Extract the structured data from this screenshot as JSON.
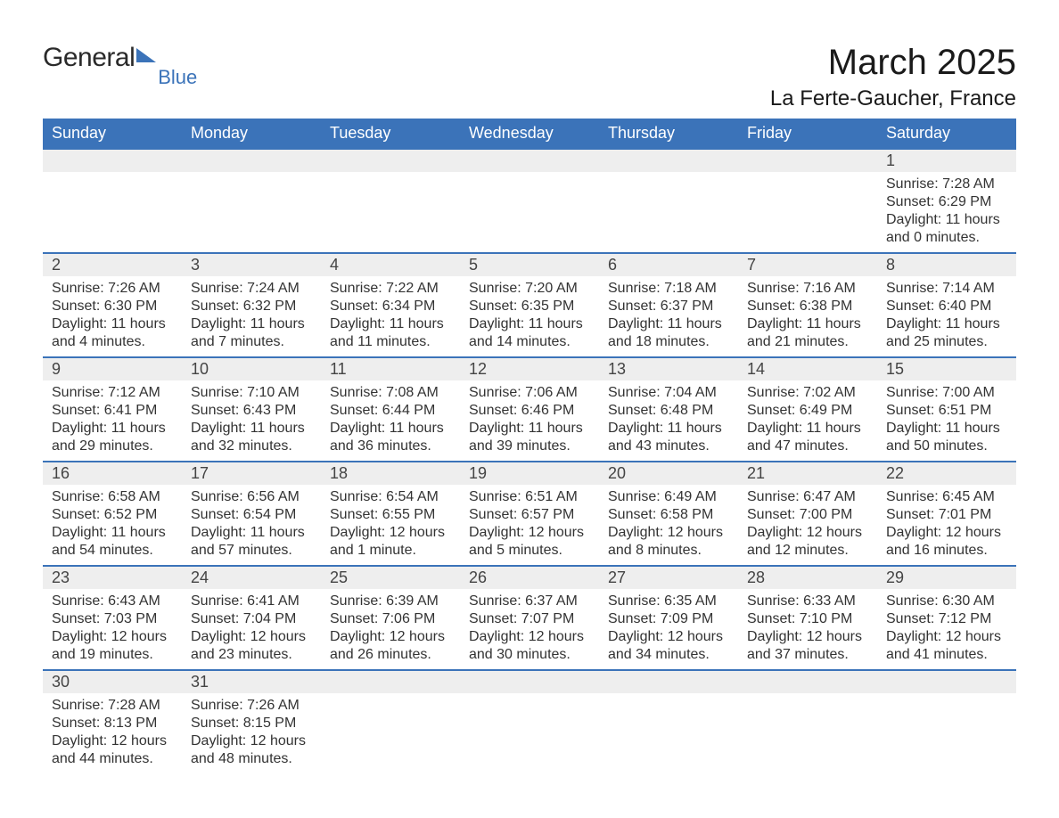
{
  "logo": {
    "word1": "General",
    "word2": "Blue"
  },
  "title": "March 2025",
  "location": "La Ferte-Gaucher, France",
  "colors": {
    "header_bg": "#3b73b9",
    "header_text": "#ffffff",
    "dayrow_bg": "#eeeeee",
    "border": "#3b73b9",
    "body_text": "#333333",
    "page_bg": "#ffffff"
  },
  "typography": {
    "month_title_fontsize": 40,
    "location_fontsize": 24,
    "header_fontsize": 18,
    "daynum_fontsize": 18,
    "detail_fontsize": 16
  },
  "weekdays": [
    "Sunday",
    "Monday",
    "Tuesday",
    "Wednesday",
    "Thursday",
    "Friday",
    "Saturday"
  ],
  "weeks": [
    [
      null,
      null,
      null,
      null,
      null,
      null,
      {
        "day": "1",
        "sunrise": "Sunrise: 7:28 AM",
        "sunset": "Sunset: 6:29 PM",
        "daylight1": "Daylight: 11 hours",
        "daylight2": "and 0 minutes."
      }
    ],
    [
      {
        "day": "2",
        "sunrise": "Sunrise: 7:26 AM",
        "sunset": "Sunset: 6:30 PM",
        "daylight1": "Daylight: 11 hours",
        "daylight2": "and 4 minutes."
      },
      {
        "day": "3",
        "sunrise": "Sunrise: 7:24 AM",
        "sunset": "Sunset: 6:32 PM",
        "daylight1": "Daylight: 11 hours",
        "daylight2": "and 7 minutes."
      },
      {
        "day": "4",
        "sunrise": "Sunrise: 7:22 AM",
        "sunset": "Sunset: 6:34 PM",
        "daylight1": "Daylight: 11 hours",
        "daylight2": "and 11 minutes."
      },
      {
        "day": "5",
        "sunrise": "Sunrise: 7:20 AM",
        "sunset": "Sunset: 6:35 PM",
        "daylight1": "Daylight: 11 hours",
        "daylight2": "and 14 minutes."
      },
      {
        "day": "6",
        "sunrise": "Sunrise: 7:18 AM",
        "sunset": "Sunset: 6:37 PM",
        "daylight1": "Daylight: 11 hours",
        "daylight2": "and 18 minutes."
      },
      {
        "day": "7",
        "sunrise": "Sunrise: 7:16 AM",
        "sunset": "Sunset: 6:38 PM",
        "daylight1": "Daylight: 11 hours",
        "daylight2": "and 21 minutes."
      },
      {
        "day": "8",
        "sunrise": "Sunrise: 7:14 AM",
        "sunset": "Sunset: 6:40 PM",
        "daylight1": "Daylight: 11 hours",
        "daylight2": "and 25 minutes."
      }
    ],
    [
      {
        "day": "9",
        "sunrise": "Sunrise: 7:12 AM",
        "sunset": "Sunset: 6:41 PM",
        "daylight1": "Daylight: 11 hours",
        "daylight2": "and 29 minutes."
      },
      {
        "day": "10",
        "sunrise": "Sunrise: 7:10 AM",
        "sunset": "Sunset: 6:43 PM",
        "daylight1": "Daylight: 11 hours",
        "daylight2": "and 32 minutes."
      },
      {
        "day": "11",
        "sunrise": "Sunrise: 7:08 AM",
        "sunset": "Sunset: 6:44 PM",
        "daylight1": "Daylight: 11 hours",
        "daylight2": "and 36 minutes."
      },
      {
        "day": "12",
        "sunrise": "Sunrise: 7:06 AM",
        "sunset": "Sunset: 6:46 PM",
        "daylight1": "Daylight: 11 hours",
        "daylight2": "and 39 minutes."
      },
      {
        "day": "13",
        "sunrise": "Sunrise: 7:04 AM",
        "sunset": "Sunset: 6:48 PM",
        "daylight1": "Daylight: 11 hours",
        "daylight2": "and 43 minutes."
      },
      {
        "day": "14",
        "sunrise": "Sunrise: 7:02 AM",
        "sunset": "Sunset: 6:49 PM",
        "daylight1": "Daylight: 11 hours",
        "daylight2": "and 47 minutes."
      },
      {
        "day": "15",
        "sunrise": "Sunrise: 7:00 AM",
        "sunset": "Sunset: 6:51 PM",
        "daylight1": "Daylight: 11 hours",
        "daylight2": "and 50 minutes."
      }
    ],
    [
      {
        "day": "16",
        "sunrise": "Sunrise: 6:58 AM",
        "sunset": "Sunset: 6:52 PM",
        "daylight1": "Daylight: 11 hours",
        "daylight2": "and 54 minutes."
      },
      {
        "day": "17",
        "sunrise": "Sunrise: 6:56 AM",
        "sunset": "Sunset: 6:54 PM",
        "daylight1": "Daylight: 11 hours",
        "daylight2": "and 57 minutes."
      },
      {
        "day": "18",
        "sunrise": "Sunrise: 6:54 AM",
        "sunset": "Sunset: 6:55 PM",
        "daylight1": "Daylight: 12 hours",
        "daylight2": "and 1 minute."
      },
      {
        "day": "19",
        "sunrise": "Sunrise: 6:51 AM",
        "sunset": "Sunset: 6:57 PM",
        "daylight1": "Daylight: 12 hours",
        "daylight2": "and 5 minutes."
      },
      {
        "day": "20",
        "sunrise": "Sunrise: 6:49 AM",
        "sunset": "Sunset: 6:58 PM",
        "daylight1": "Daylight: 12 hours",
        "daylight2": "and 8 minutes."
      },
      {
        "day": "21",
        "sunrise": "Sunrise: 6:47 AM",
        "sunset": "Sunset: 7:00 PM",
        "daylight1": "Daylight: 12 hours",
        "daylight2": "and 12 minutes."
      },
      {
        "day": "22",
        "sunrise": "Sunrise: 6:45 AM",
        "sunset": "Sunset: 7:01 PM",
        "daylight1": "Daylight: 12 hours",
        "daylight2": "and 16 minutes."
      }
    ],
    [
      {
        "day": "23",
        "sunrise": "Sunrise: 6:43 AM",
        "sunset": "Sunset: 7:03 PM",
        "daylight1": "Daylight: 12 hours",
        "daylight2": "and 19 minutes."
      },
      {
        "day": "24",
        "sunrise": "Sunrise: 6:41 AM",
        "sunset": "Sunset: 7:04 PM",
        "daylight1": "Daylight: 12 hours",
        "daylight2": "and 23 minutes."
      },
      {
        "day": "25",
        "sunrise": "Sunrise: 6:39 AM",
        "sunset": "Sunset: 7:06 PM",
        "daylight1": "Daylight: 12 hours",
        "daylight2": "and 26 minutes."
      },
      {
        "day": "26",
        "sunrise": "Sunrise: 6:37 AM",
        "sunset": "Sunset: 7:07 PM",
        "daylight1": "Daylight: 12 hours",
        "daylight2": "and 30 minutes."
      },
      {
        "day": "27",
        "sunrise": "Sunrise: 6:35 AM",
        "sunset": "Sunset: 7:09 PM",
        "daylight1": "Daylight: 12 hours",
        "daylight2": "and 34 minutes."
      },
      {
        "day": "28",
        "sunrise": "Sunrise: 6:33 AM",
        "sunset": "Sunset: 7:10 PM",
        "daylight1": "Daylight: 12 hours",
        "daylight2": "and 37 minutes."
      },
      {
        "day": "29",
        "sunrise": "Sunrise: 6:30 AM",
        "sunset": "Sunset: 7:12 PM",
        "daylight1": "Daylight: 12 hours",
        "daylight2": "and 41 minutes."
      }
    ],
    [
      {
        "day": "30",
        "sunrise": "Sunrise: 7:28 AM",
        "sunset": "Sunset: 8:13 PM",
        "daylight1": "Daylight: 12 hours",
        "daylight2": "and 44 minutes."
      },
      {
        "day": "31",
        "sunrise": "Sunrise: 7:26 AM",
        "sunset": "Sunset: 8:15 PM",
        "daylight1": "Daylight: 12 hours",
        "daylight2": "and 48 minutes."
      },
      null,
      null,
      null,
      null,
      null
    ]
  ]
}
